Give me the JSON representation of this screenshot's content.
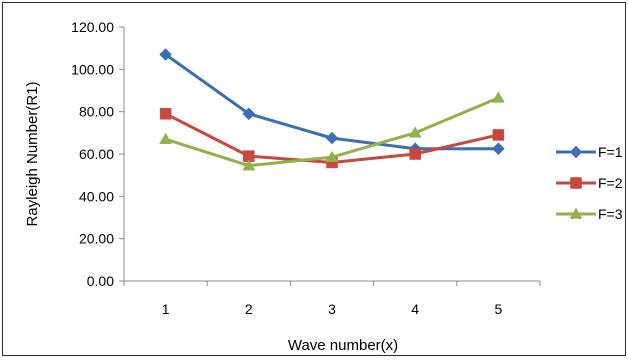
{
  "chart_data": {
    "type": "line",
    "xlabel": "Wave number(x)",
    "ylabel": "Rayleigh Number(R1)",
    "categories": [
      "1",
      "2",
      "3",
      "4",
      "5"
    ],
    "ylim": [
      0,
      120
    ],
    "yticks": [
      "0.00",
      "20.00",
      "40.00",
      "60.00",
      "80.00",
      "100.00",
      "120.00"
    ],
    "grid": false,
    "legend_position": "right",
    "series": [
      {
        "name": "F=1",
        "values": [
          107.0,
          79.0,
          67.5,
          62.5,
          62.5
        ],
        "color": "#3a6fb5",
        "marker": "diamond"
      },
      {
        "name": "F=2",
        "values": [
          79.0,
          59.0,
          56.0,
          60.0,
          69.0
        ],
        "color": "#c9473f",
        "marker": "square"
      },
      {
        "name": "F=3",
        "values": [
          67.0,
          54.5,
          58.5,
          70.0,
          86.5
        ],
        "color": "#92b14b",
        "marker": "triangle"
      }
    ]
  }
}
